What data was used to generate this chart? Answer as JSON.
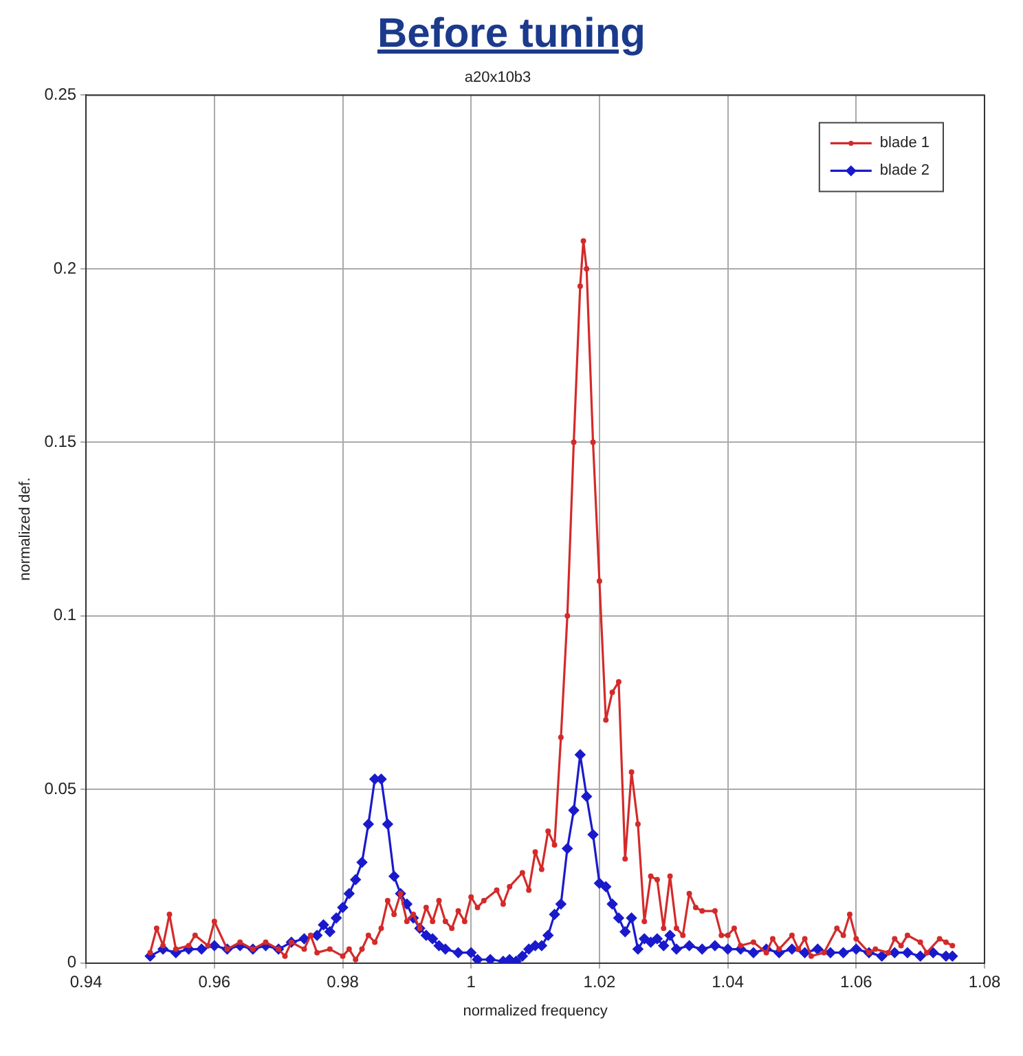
{
  "chart_data": {
    "type": "line",
    "title": "Before tuning",
    "subtitle": "a20x10b3",
    "xlabel": "normalized frequency",
    "ylabel": "normalized def.",
    "xlim": [
      0.94,
      1.08
    ],
    "xticks": [
      0.94,
      0.96,
      0.98,
      1,
      1.02,
      1.04,
      1.06,
      1.08
    ],
    "ylim": [
      0,
      0.25
    ],
    "yticks": [
      0,
      0.05,
      0.1,
      0.15,
      0.2,
      0.25
    ],
    "grid": true,
    "legend": "top right",
    "line_style": "solid",
    "series": [
      {
        "name": "blade 1",
        "color": "#d42a2a",
        "marker": "circle",
        "x": [
          0.95,
          0.951,
          0.952,
          0.953,
          0.954,
          0.956,
          0.957,
          0.959,
          0.96,
          0.962,
          0.964,
          0.966,
          0.968,
          0.97,
          0.971,
          0.972,
          0.974,
          0.975,
          0.976,
          0.978,
          0.98,
          0.981,
          0.982,
          0.983,
          0.984,
          0.985,
          0.986,
          0.987,
          0.988,
          0.989,
          0.99,
          0.991,
          0.992,
          0.993,
          0.994,
          0.995,
          0.996,
          0.997,
          0.998,
          0.999,
          1,
          1.001,
          1.002,
          1.004,
          1.005,
          1.006,
          1.008,
          1.009,
          1.01,
          1.011,
          1.012,
          1.013,
          1.014,
          1.015,
          1.016,
          1.017,
          1.0175,
          1.018,
          1.019,
          1.02,
          1.021,
          1.022,
          1.023,
          1.024,
          1.025,
          1.026,
          1.027,
          1.028,
          1.029,
          1.03,
          1.031,
          1.032,
          1.033,
          1.034,
          1.035,
          1.036,
          1.038,
          1.039,
          1.04,
          1.041,
          1.042,
          1.044,
          1.046,
          1.047,
          1.048,
          1.05,
          1.051,
          1.052,
          1.053,
          1.055,
          1.057,
          1.058,
          1.059,
          1.06,
          1.062,
          1.063,
          1.065,
          1.066,
          1.067,
          1.068,
          1.07,
          1.071,
          1.073,
          1.074,
          1.075
        ],
        "values": [
          0.003,
          0.01,
          0.005,
          0.014,
          0.004,
          0.005,
          0.008,
          0.005,
          0.012,
          0.004,
          0.006,
          0.004,
          0.006,
          0.004,
          0.002,
          0.006,
          0.004,
          0.008,
          0.003,
          0.004,
          0.002,
          0.004,
          0.001,
          0.004,
          0.008,
          0.006,
          0.01,
          0.018,
          0.014,
          0.02,
          0.012,
          0.014,
          0.01,
          0.016,
          0.012,
          0.018,
          0.012,
          0.01,
          0.015,
          0.012,
          0.019,
          0.016,
          0.018,
          0.021,
          0.017,
          0.022,
          0.026,
          0.021,
          0.032,
          0.027,
          0.038,
          0.034,
          0.065,
          0.1,
          0.15,
          0.195,
          0.208,
          0.2,
          0.15,
          0.11,
          0.07,
          0.078,
          0.081,
          0.03,
          0.055,
          0.04,
          0.012,
          0.025,
          0.024,
          0.01,
          0.025,
          0.01,
          0.008,
          0.02,
          0.016,
          0.015,
          0.015,
          0.008,
          0.008,
          0.01,
          0.005,
          0.006,
          0.003,
          0.007,
          0.004,
          0.008,
          0.004,
          0.007,
          0.002,
          0.003,
          0.01,
          0.008,
          0.014,
          0.007,
          0.003,
          0.004,
          0.003,
          0.007,
          0.005,
          0.008,
          0.006,
          0.003,
          0.007,
          0.006,
          0.005
        ]
      },
      {
        "name": "blade 2",
        "color": "#1a1acc",
        "marker": "diamond",
        "x": [
          0.95,
          0.952,
          0.954,
          0.956,
          0.958,
          0.96,
          0.962,
          0.964,
          0.966,
          0.968,
          0.97,
          0.972,
          0.974,
          0.976,
          0.977,
          0.978,
          0.979,
          0.98,
          0.981,
          0.982,
          0.983,
          0.984,
          0.985,
          0.986,
          0.987,
          0.988,
          0.989,
          0.99,
          0.991,
          0.992,
          0.993,
          0.994,
          0.995,
          0.996,
          0.998,
          1,
          1.001,
          1.003,
          1.005,
          1.006,
          1.007,
          1.008,
          1.009,
          1.01,
          1.011,
          1.012,
          1.013,
          1.014,
          1.015,
          1.016,
          1.017,
          1.018,
          1.019,
          1.02,
          1.021,
          1.022,
          1.023,
          1.024,
          1.025,
          1.026,
          1.027,
          1.028,
          1.029,
          1.03,
          1.031,
          1.032,
          1.034,
          1.036,
          1.038,
          1.04,
          1.042,
          1.044,
          1.046,
          1.048,
          1.05,
          1.052,
          1.054,
          1.056,
          1.058,
          1.06,
          1.062,
          1.064,
          1.066,
          1.068,
          1.07,
          1.072,
          1.074,
          1.075
        ],
        "values": [
          0.002,
          0.004,
          0.003,
          0.004,
          0.004,
          0.005,
          0.004,
          0.005,
          0.004,
          0.005,
          0.004,
          0.006,
          0.007,
          0.008,
          0.011,
          0.009,
          0.013,
          0.016,
          0.02,
          0.024,
          0.029,
          0.04,
          0.053,
          0.053,
          0.04,
          0.025,
          0.02,
          0.017,
          0.013,
          0.01,
          0.008,
          0.007,
          0.005,
          0.004,
          0.003,
          0.003,
          0.001,
          0.001,
          0.0005,
          0.001,
          0.0005,
          0.002,
          0.004,
          0.005,
          0.005,
          0.008,
          0.014,
          0.017,
          0.033,
          0.044,
          0.06,
          0.048,
          0.037,
          0.023,
          0.022,
          0.017,
          0.013,
          0.009,
          0.013,
          0.004,
          0.007,
          0.006,
          0.007,
          0.005,
          0.008,
          0.004,
          0.005,
          0.004,
          0.005,
          0.004,
          0.004,
          0.003,
          0.004,
          0.003,
          0.004,
          0.003,
          0.004,
          0.003,
          0.003,
          0.004,
          0.003,
          0.002,
          0.003,
          0.003,
          0.002,
          0.003,
          0.002,
          0.002
        ]
      }
    ]
  }
}
